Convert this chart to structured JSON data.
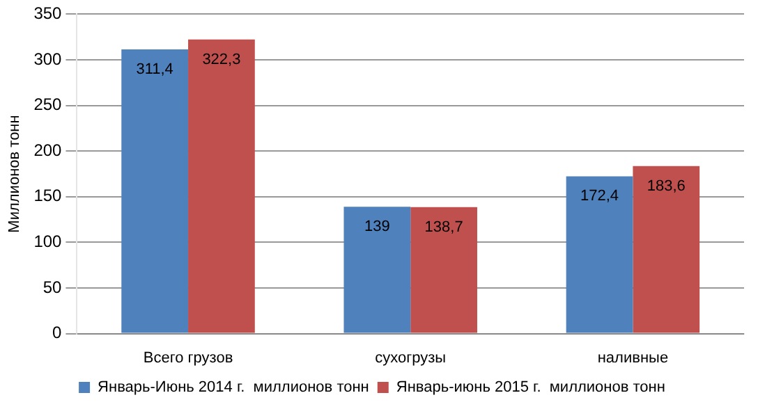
{
  "chart_data": {
    "type": "bar",
    "ylabel": "Миллионов тонн",
    "categories": [
      "Всего грузов",
      "сухогрузы",
      "наливные"
    ],
    "series": [
      {
        "name": "Январь-Июнь 2014 г.  миллионов тонн",
        "color": "#4f81bd",
        "values": [
          311.4,
          139,
          172.4
        ],
        "value_labels": [
          "311,4",
          "139",
          "172,4"
        ]
      },
      {
        "name": "Январь-июнь 2015 г.  миллионов тонн",
        "color": "#c0504d",
        "values": [
          322.3,
          138.7,
          183.6
        ],
        "value_labels": [
          "322,3",
          "138,7",
          "183,6"
        ]
      }
    ],
    "ylim": [
      0,
      350
    ],
    "yticks": [
      0,
      50,
      100,
      150,
      200,
      250,
      300,
      350
    ],
    "grid": "y",
    "legend": "bottom"
  }
}
